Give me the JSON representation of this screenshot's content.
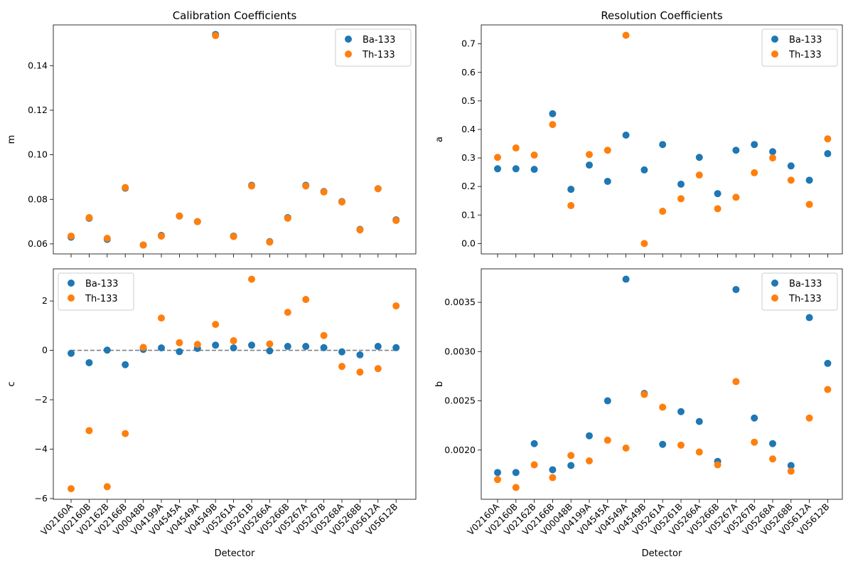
{
  "detectors": [
    "V02160A",
    "V02160B",
    "V02162B",
    "V02166B",
    "V00048B",
    "V04199A",
    "V04545A",
    "V04549A",
    "V04549B",
    "V05261A",
    "V05261B",
    "V05266A",
    "V05266B",
    "V05267A",
    "V05267B",
    "V05268A",
    "V05268B",
    "V05612A",
    "V05612B"
  ],
  "colors": {
    "ba": "#1f77b4",
    "th": "#ff7f0e",
    "ref_line": "#808080",
    "axes": "#000000"
  },
  "chart_data": [
    {
      "type": "scatter",
      "title": "Calibration Coefficients",
      "xlabel": "",
      "ylabel": "m",
      "ylim": [
        0.0555,
        0.1583
      ],
      "yticks": [
        0.06,
        0.08,
        0.1,
        0.12,
        0.14
      ],
      "ytick_labels": [
        "0.06",
        "0.08",
        "0.10",
        "0.12",
        "0.14"
      ],
      "show_xticklabels": false,
      "legend": "top-right",
      "series": [
        {
          "name": "Ba-133",
          "values": [
            0.063,
            0.0715,
            0.062,
            0.085,
            0.0595,
            0.0638,
            0.0725,
            0.07,
            0.154,
            0.0635,
            0.0863,
            0.061,
            0.0718,
            0.0863,
            0.0835,
            0.079,
            0.0665,
            0.0848,
            0.0708
          ]
        },
        {
          "name": "Th-133",
          "values": [
            0.0635,
            0.0718,
            0.0625,
            0.0853,
            0.0595,
            0.0635,
            0.0725,
            0.07,
            0.1535,
            0.0633,
            0.086,
            0.0608,
            0.0715,
            0.086,
            0.0833,
            0.0788,
            0.0663,
            0.0848,
            0.0705
          ]
        }
      ]
    },
    {
      "type": "scatter",
      "title": "Resolution Coefficients",
      "xlabel": "",
      "ylabel": "a",
      "ylim": [
        -0.0365,
        0.7665
      ],
      "yticks": [
        0.0,
        0.1,
        0.2,
        0.3,
        0.4,
        0.5,
        0.6,
        0.7
      ],
      "ytick_labels": [
        "0.0",
        "0.1",
        "0.2",
        "0.3",
        "0.4",
        "0.5",
        "0.6",
        "0.7"
      ],
      "show_xticklabels": false,
      "legend": "top-right",
      "series": [
        {
          "name": "Ba-133",
          "values": [
            0.262,
            0.262,
            0.26,
            0.455,
            0.19,
            0.275,
            0.218,
            0.38,
            0.258,
            0.347,
            0.208,
            0.302,
            0.175,
            0.327,
            0.347,
            0.322,
            0.272,
            0.222,
            0.315
          ]
        },
        {
          "name": "Th-133",
          "values": [
            0.302,
            0.335,
            0.31,
            0.417,
            0.133,
            0.312,
            0.327,
            0.73,
            0.0,
            0.113,
            0.157,
            0.24,
            0.122,
            0.162,
            0.248,
            0.3,
            0.222,
            0.137,
            0.367
          ]
        }
      ]
    },
    {
      "type": "scatter",
      "title": "",
      "xlabel": "Detector",
      "ylabel": "c",
      "ylim": [
        -6.03,
        3.3
      ],
      "yticks": [
        -6,
        -4,
        -2,
        0,
        2
      ],
      "ytick_labels": [
        "−6",
        "−4",
        "−2",
        "0",
        "2"
      ],
      "show_xticklabels": true,
      "legend": "top-left",
      "reference_line": {
        "y": 0,
        "style": "dashed"
      },
      "series": [
        {
          "name": "Ba-133",
          "values": [
            -0.12,
            -0.5,
            0.01,
            -0.58,
            0.04,
            0.1,
            -0.05,
            0.08,
            0.21,
            0.1,
            0.21,
            -0.02,
            0.16,
            0.16,
            0.11,
            -0.06,
            -0.18,
            0.16,
            0.11
          ]
        },
        {
          "name": "Th-133",
          "values": [
            -5.6,
            -3.25,
            -5.52,
            -3.37,
            0.12,
            1.31,
            0.31,
            0.24,
            1.05,
            0.39,
            2.88,
            0.26,
            1.54,
            2.06,
            0.6,
            -0.65,
            -0.88,
            -0.74,
            1.8
          ]
        }
      ]
    },
    {
      "type": "scatter",
      "title": "",
      "xlabel": "Detector",
      "ylabel": "b",
      "ylim": [
        0.0015,
        0.00384
      ],
      "yticks": [
        0.002,
        0.0025,
        0.003,
        0.0035
      ],
      "ytick_labels": [
        "0.0020",
        "0.0025",
        "0.0030",
        "0.0035"
      ],
      "show_xticklabels": true,
      "legend": "top-right",
      "series": [
        {
          "name": "Ba-133",
          "values": [
            0.001772,
            0.001772,
            0.002065,
            0.0018,
            0.001843,
            0.002145,
            0.0025,
            0.003735,
            0.002575,
            0.002058,
            0.00239,
            0.00229,
            0.001885,
            0.00363,
            0.002325,
            0.002065,
            0.001843,
            0.003345,
            0.00288
          ]
        },
        {
          "name": "Th-133",
          "values": [
            0.0017,
            0.00162,
            0.00185,
            0.00172,
            0.001945,
            0.00189,
            0.0021,
            0.00202,
            0.002565,
            0.002435,
            0.00205,
            0.00198,
            0.00185,
            0.002695,
            0.00208,
            0.00191,
            0.001785,
            0.002325,
            0.002615
          ]
        }
      ]
    }
  ]
}
